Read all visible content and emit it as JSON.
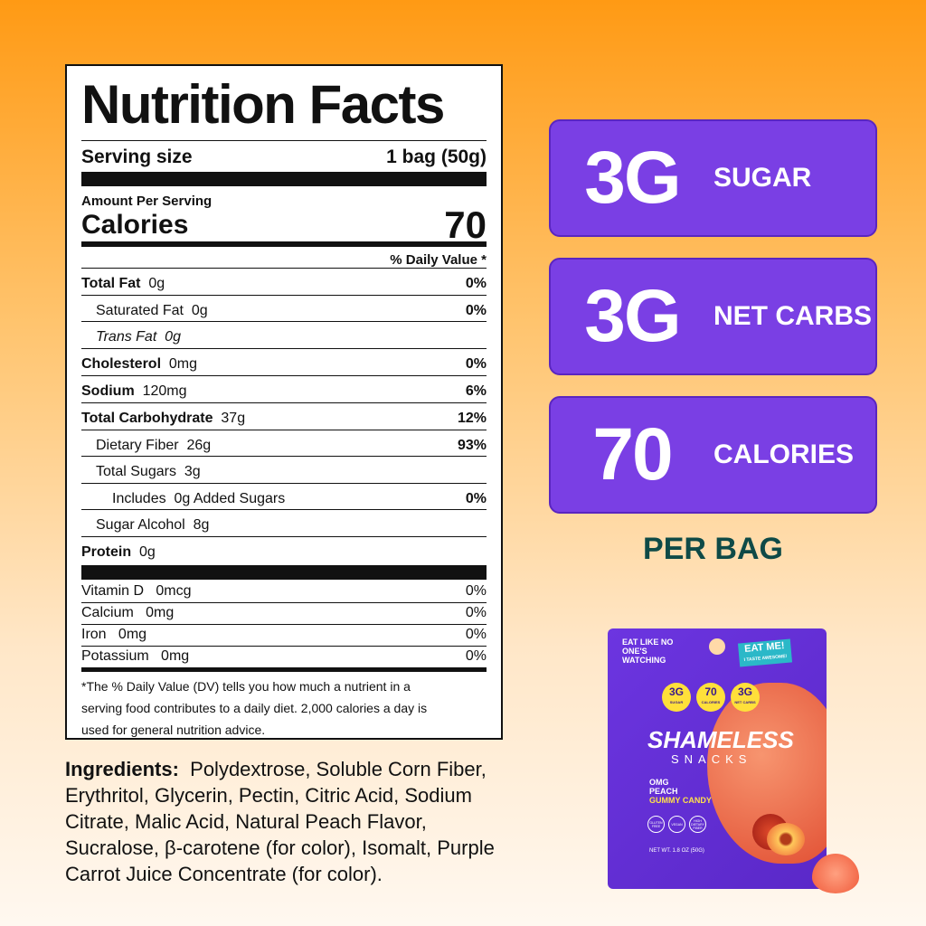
{
  "nutrition": {
    "title": "Nutrition Facts",
    "serving_label": "Serving size",
    "serving_value": "1 bag (50g)",
    "amount_per_serving": "Amount Per Serving",
    "calories_label": "Calories",
    "calories_value": "70",
    "dv_header": "% Daily Value *",
    "rows": [
      {
        "label": "Total Fat",
        "amount": "0g",
        "dv": "0%"
      },
      {
        "label": "Saturated Fat",
        "amount": "0g",
        "dv": "0%"
      },
      {
        "label": "Trans Fat",
        "amount": "0g",
        "dv": ""
      },
      {
        "label": "Cholesterol",
        "amount": "0mg",
        "dv": "0%"
      },
      {
        "label": "Sodium",
        "amount": "120mg",
        "dv": "6%"
      },
      {
        "label": "Total Carbohydrate",
        "amount": "37g",
        "dv": "12%"
      },
      {
        "label": "Dietary Fiber",
        "amount": "26g",
        "dv": "93%"
      },
      {
        "label": "Total Sugars",
        "amount": "3g",
        "dv": ""
      },
      {
        "label": "Includes",
        "amount": "0g Added Sugars",
        "dv": "0%"
      },
      {
        "label": "Sugar Alcohol",
        "amount": "8g",
        "dv": ""
      },
      {
        "label": "Protein",
        "amount": "0g",
        "dv": ""
      }
    ],
    "vitamins": [
      {
        "label": "Vitamin D",
        "amount": "0mcg",
        "dv": "0%"
      },
      {
        "label": "Calcium",
        "amount": "0mg",
        "dv": "0%"
      },
      {
        "label": "Iron",
        "amount": "0mg",
        "dv": "0%"
      },
      {
        "label": "Potassium",
        "amount": "0mg",
        "dv": "0%"
      }
    ],
    "footnote": "*The % Daily Value (DV) tells you how much a nutrient in a serving food contributes to a daily diet. 2,000 calories a day is used for general nutrition advice."
  },
  "ingredients": {
    "label": "Ingredients:",
    "text": "Polydextrose, Soluble Corn Fiber, Erythritol, Glycerin, Pectin, Citric Acid, Sodium Citrate, Malic Acid, Natural Peach Flavor, Sucralose, β-carotene (for color), Isomalt, Purple Carrot Juice Concentrate (for color)."
  },
  "highlights": [
    {
      "value": "3G",
      "label": "SUGAR"
    },
    {
      "value": "3G",
      "label": "NET CARBS"
    },
    {
      "value": "70",
      "label": "CALORIES"
    }
  ],
  "per_bag": "PER BAG",
  "package": {
    "tagline": "EAT LIKE NO ONE'S WATCHING",
    "eat_me": "EAT ME!",
    "eat_me_sub": "I TASTE AWESOME!",
    "badges": [
      {
        "value": "3G",
        "label": "SUGAR"
      },
      {
        "value": "70",
        "label": "CALORIES"
      },
      {
        "value": "3G",
        "label": "NET CARBS"
      }
    ],
    "brand": "SHAMELESS",
    "brand_sub": "SNACKS",
    "flavor1": "OMG",
    "flavor2": "PEACH",
    "product_type": "GUMMY CANDY",
    "icons": [
      "GLUTEN FREE",
      "VEGAN",
      "HIGH DIETARY FIBER"
    ],
    "net_wt": "NET WT. 1.8 OZ (50G)"
  },
  "colors": {
    "purple": "#7a3fe4",
    "teal": "#0e4a47",
    "orange": "#ff9a14"
  }
}
